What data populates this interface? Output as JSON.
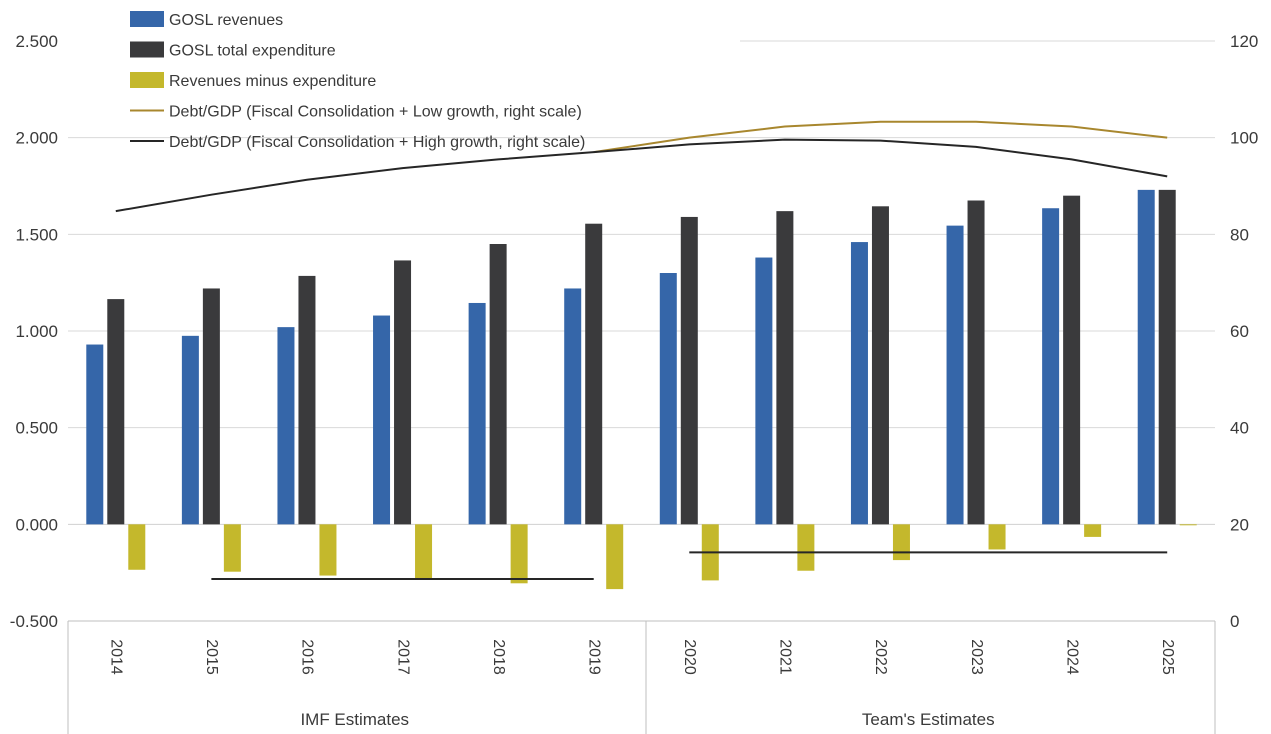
{
  "chart_data": {
    "type": "bar",
    "categories": [
      "2014",
      "2015",
      "2016",
      "2017",
      "2018",
      "2019",
      "2020",
      "2021",
      "2022",
      "2023",
      "2024",
      "2025"
    ],
    "groups": [
      {
        "label": "IMF Estimates",
        "from": 0,
        "to": 5
      },
      {
        "label": "Team's Estimates",
        "from": 6,
        "to": 11
      }
    ],
    "series": [
      {
        "name": "GOSL revenues",
        "type": "bar",
        "axis": "left",
        "color": "#3566a9",
        "values": [
          0.93,
          0.975,
          1.02,
          1.08,
          1.145,
          1.22,
          1.3,
          1.38,
          1.46,
          1.545,
          1.635,
          1.73
        ]
      },
      {
        "name": "GOSL total expenditure",
        "type": "bar",
        "axis": "left",
        "color": "#3a3a3c",
        "values": [
          1.165,
          1.22,
          1.285,
          1.365,
          1.45,
          1.555,
          1.59,
          1.62,
          1.645,
          1.675,
          1.7,
          1.73
        ]
      },
      {
        "name": "Revenues minus expenditure",
        "type": "bar",
        "axis": "left",
        "color": "#c4b82c",
        "values": [
          -0.235,
          -0.245,
          -0.265,
          -0.285,
          -0.305,
          -0.335,
          -0.29,
          -0.24,
          -0.185,
          -0.13,
          -0.065,
          -0.005
        ]
      },
      {
        "name": "Debt/GDP (Fiscal Consolidation + Low growth, right scale)",
        "type": "line",
        "axis": "right",
        "color": "#a8872e",
        "values": [
          null,
          null,
          null,
          null,
          null,
          97.0,
          100.0,
          102.3,
          103.3,
          103.3,
          102.3,
          100.0
        ]
      },
      {
        "name": "Debt/GDP (Fiscal Consolidation + High growth, right scale)",
        "type": "line",
        "axis": "right",
        "color": "#262626",
        "values": [
          84.8,
          88.2,
          91.3,
          93.7,
          95.5,
          97.0,
          98.6,
          99.6,
          99.4,
          98.1,
          95.5,
          92.0
        ]
      }
    ],
    "reference_lines": [
      {
        "axis": "left",
        "value": -0.283,
        "from": "2015",
        "to": "2019",
        "color": "#262626"
      },
      {
        "axis": "left",
        "value": -0.145,
        "from": "2020",
        "to": "2025",
        "color": "#262626"
      }
    ],
    "y_left": {
      "min": -0.5,
      "max": 2.5,
      "ticks": [
        "-0.500",
        "0.000",
        "0.500",
        "1.000",
        "1.500",
        "2.000",
        "2.500"
      ],
      "tick_values": [
        -0.5,
        0,
        0.5,
        1,
        1.5,
        2,
        2.5
      ]
    },
    "y_right": {
      "min": 0,
      "max": 120,
      "ticks": [
        "0",
        "20",
        "40",
        "60",
        "80",
        "100",
        "120"
      ],
      "tick_values": [
        0,
        20,
        40,
        60,
        80,
        100,
        120
      ]
    },
    "grid": true,
    "legend_position": "top-left"
  }
}
